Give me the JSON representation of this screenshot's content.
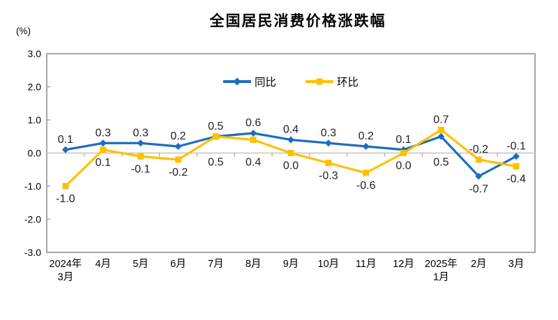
{
  "chart_data": {
    "type": "line",
    "title": "全国居民消费价格涨跌幅",
    "unit_label": "(%)",
    "categories": [
      [
        "2024年",
        "3月"
      ],
      [
        "4月"
      ],
      [
        "5月"
      ],
      [
        "6月"
      ],
      [
        "7月"
      ],
      [
        "8月"
      ],
      [
        "9月"
      ],
      [
        "10月"
      ],
      [
        "11月"
      ],
      [
        "12月"
      ],
      [
        "2025年",
        "1月"
      ],
      [
        "2月"
      ],
      [
        "3月"
      ]
    ],
    "series": [
      {
        "name": "同比",
        "marker": "diamond",
        "color": "#1e6cbf",
        "values": [
          0.1,
          0.3,
          0.3,
          0.2,
          0.5,
          0.6,
          0.4,
          0.3,
          0.2,
          0.1,
          0.5,
          -0.7,
          -0.1
        ]
      },
      {
        "name": "环比",
        "marker": "square",
        "color": "#ffc000",
        "values": [
          -1.0,
          0.1,
          -0.1,
          -0.2,
          0.5,
          0.4,
          0.0,
          -0.3,
          -0.6,
          0.0,
          0.7,
          -0.2,
          -0.4
        ]
      }
    ],
    "ylim": [
      -3.0,
      3.0
    ],
    "yticks": [
      3.0,
      2.0,
      1.0,
      0.0,
      -1.0,
      -2.0,
      -3.0
    ],
    "legend_position": "top-center",
    "grid": false,
    "axis_color": "#a6a6a6",
    "zero_line_color": "#c2c2c2",
    "text_color": "#222222"
  }
}
